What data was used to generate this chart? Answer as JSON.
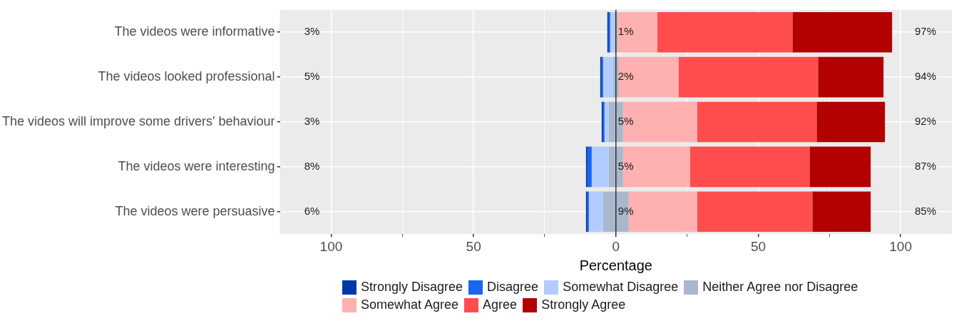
{
  "chart_data": {
    "type": "bar",
    "orientation": "horizontal",
    "xlabel": "Percentage",
    "categories": [
      "The videos were informative",
      "The videos looked professional",
      "The videos will improve some drivers' behaviour",
      "The videos were interesting",
      "The videos were persuasive"
    ],
    "series": [
      {
        "name": "Strongly Disagree",
        "color": "#0039a6",
        "base": [
          -3,
          -5.5,
          -5,
          -10.5,
          -10.5
        ],
        "values": [
          0.5,
          0.5,
          0.5,
          0.5,
          0.5
        ]
      },
      {
        "name": "Disagree",
        "color": "#1a66ee",
        "base": [
          -2.5,
          -5,
          -4.5,
          -10,
          -10
        ],
        "values": [
          0.5,
          0.5,
          0.5,
          1.5,
          0.5
        ]
      },
      {
        "name": "Somewhat Disagree",
        "color": "#b3ccff",
        "base": [
          -2,
          -4.5,
          -4,
          -8.5,
          -9.5
        ],
        "values": [
          1.5,
          3.5,
          1.5,
          6,
          5
        ]
      },
      {
        "name": "Neither Agree nor Disagree",
        "color": "#a9b8cc",
        "base": [
          -0.5,
          -1,
          -2.5,
          -2.5,
          -4.5
        ],
        "values": [
          1,
          2,
          5,
          5,
          9
        ],
        "value_labels": [
          "1%",
          "2%",
          "5%",
          "5%",
          "9%"
        ]
      },
      {
        "name": "Somewhat Agree",
        "color": "#ffb0b0",
        "base": [
          0.5,
          1,
          2.5,
          2.5,
          4.5
        ],
        "values": [
          14,
          21,
          26,
          23.5,
          24
        ]
      },
      {
        "name": "Agree",
        "color": "#ff4d4d",
        "base": [
          14.5,
          22,
          28.5,
          26,
          28.5
        ],
        "values": [
          47.5,
          49,
          42,
          42,
          40.5
        ]
      },
      {
        "name": "Strongly Agree",
        "color": "#b30000",
        "base": [
          62,
          71,
          70.5,
          68,
          69
        ],
        "values": [
          35,
          23,
          24,
          21.5,
          20.5
        ]
      }
    ],
    "xlim": [
      -118,
      118
    ],
    "xticks": [
      {
        "value": -100,
        "label": "100"
      },
      {
        "value": -75,
        "label": null
      },
      {
        "value": -50,
        "label": "50"
      },
      {
        "value": -25,
        "label": null
      },
      0,
      {
        "value": 25,
        "label": null
      },
      50,
      {
        "value": 75,
        "label": null
      },
      100
    ],
    "ref_lines": [
      {
        "axis": "x",
        "value": 0,
        "color": "#333333"
      }
    ],
    "annotations": [
      "3%",
      "5%",
      "3%",
      "8%",
      "6%",
      "97%",
      "94%",
      "92%",
      "87%",
      "85%"
    ],
    "grid": true,
    "legend": "bottom"
  }
}
